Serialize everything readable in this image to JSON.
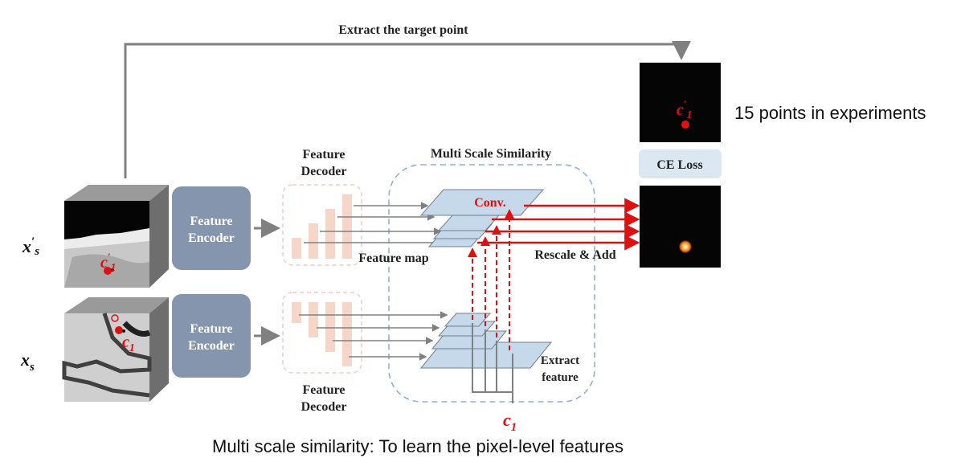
{
  "top_arrow_label": "Extract the target point",
  "side_note": "15 points in experiments",
  "caption": "Multi scale similarity: To learn the pixel-level features",
  "encoders": {
    "top_label_line1": "Feature",
    "top_label_line2": "Encoder",
    "bottom_label_line1": "Feature",
    "bottom_label_line2": "Encoder"
  },
  "decoders": {
    "top_label_line1": "Feature",
    "top_label_line2": "Decoder",
    "bottom_label_line1": "Feature",
    "bottom_label_line2": "Decoder"
  },
  "mss": {
    "title": "Multi Scale Similarity",
    "conv_label": "Conv.",
    "feature_map_label": "Feature map",
    "rescale_label": "Rescale & Add",
    "extract_label_line1": "Extract",
    "extract_label_line2": "feature"
  },
  "loss_label": "CE Loss",
  "symbols": {
    "x_prime_s": "x′s",
    "x_s": "xs",
    "c1": "c1",
    "c_prime_1": "c′1"
  },
  "colors": {
    "encoder_fill": "#8595ad",
    "loss_fill": "#dbe8f2",
    "dashed_box": "#8fb0d3",
    "plane_fill": "#c6d9ea",
    "red": "#e01010",
    "grey_arrow": "#808080",
    "decoder_bar": "#f6d6c8"
  }
}
